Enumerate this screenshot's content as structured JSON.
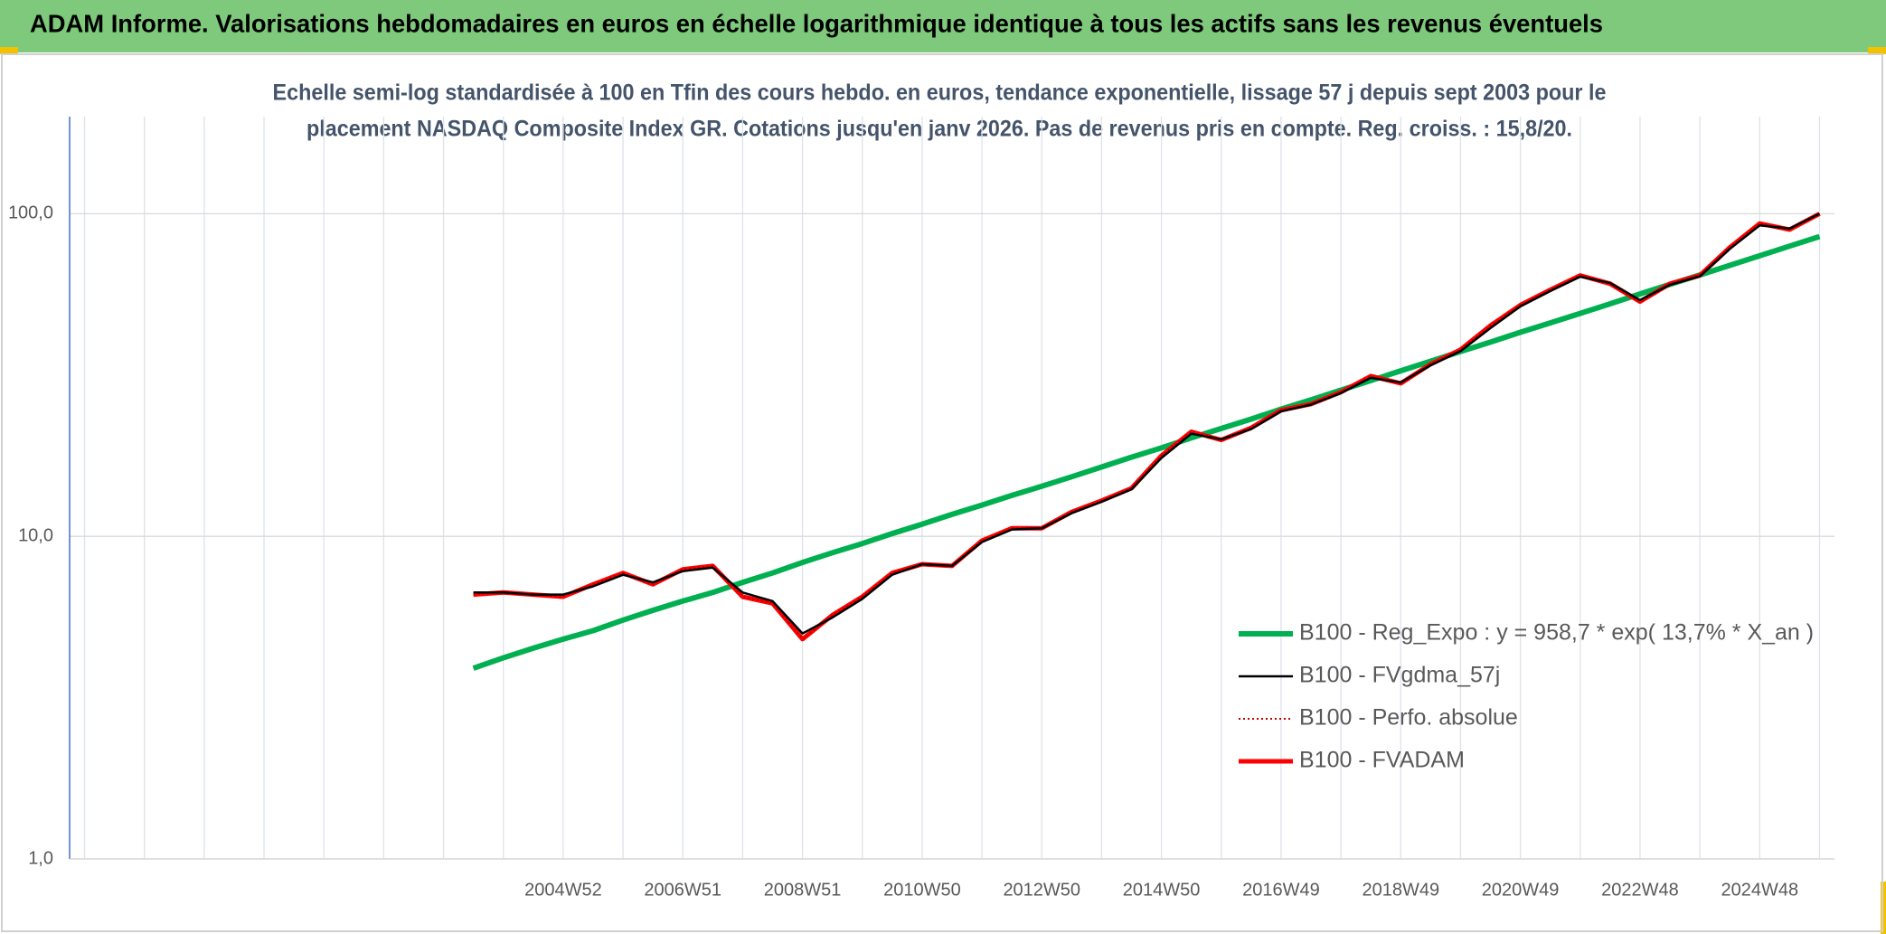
{
  "chart_data": {
    "type": "line",
    "title": "ADAM Informe. Valorisations hebdomadaires en euros en échelle logarithmique identique à tous les actifs sans les revenus éventuels",
    "subtitle": [
      "Echelle semi-log standardisée à 100 en Tfin des cours hebdo. en euros, tendance exponentielle, lissage 57 j depuis sept 2003 pour le",
      "placement NASDAQ Composite Index GR. Cotations jusqu'en janv 2026. Pas de revenus pris en compte. Reg. croiss. : 15,8/20."
    ],
    "categories": [
      null,
      null,
      null,
      null,
      null,
      null,
      null,
      null,
      null,
      null,
      null,
      null,
      null,
      null,
      null,
      null,
      "2004W52",
      null,
      null,
      null,
      "2006W51",
      null,
      null,
      null,
      "2008W51",
      null,
      null,
      null,
      "2010W50",
      null,
      null,
      null,
      "2012W50",
      null,
      null,
      null,
      "2014W50",
      null,
      null,
      null,
      "2016W49",
      null,
      null,
      null,
      "2018W49",
      null,
      null,
      null,
      "2020W49",
      null,
      null,
      null,
      "2022W48",
      null,
      null,
      null,
      "2024W48",
      null,
      null
    ],
    "log_scale": true,
    "grid": true,
    "ylim": [
      1,
      200
    ],
    "yticks": [
      {
        "value": 1,
        "label": "1,0"
      },
      {
        "value": 10,
        "label": "10,0"
      },
      {
        "value": 100,
        "label": "100,0"
      }
    ],
    "legend_position": "lower right",
    "series": [
      {
        "name": "B100 - Reg_Expo : y = 958,7 * exp( 13,7% *  X_an )",
        "color": "#00b050",
        "style": "solid",
        "values": [
          null,
          null,
          null,
          null,
          null,
          null,
          null,
          null,
          null,
          null,
          null,
          null,
          null,
          3.9,
          4.2,
          4.5,
          4.8,
          5.1,
          5.5,
          5.9,
          6.3,
          6.7,
          7.2,
          7.7,
          8.3,
          8.9,
          9.5,
          10.2,
          10.9,
          11.7,
          12.5,
          13.4,
          14.3,
          15.3,
          16.4,
          17.6,
          18.8,
          20.2,
          21.6,
          23.1,
          24.8,
          26.5,
          28.4,
          30.4,
          32.6,
          34.9,
          37.4,
          40.0,
          42.9,
          45.9,
          49.1,
          52.6,
          56.4,
          60.4,
          64.6,
          69.2,
          74.1,
          79.4,
          85.0
        ]
      },
      {
        "name": "B100 - FVgdma_57j",
        "color": "#000000",
        "style": "thin",
        "values": [
          null,
          null,
          null,
          null,
          null,
          null,
          null,
          null,
          null,
          null,
          null,
          null,
          null,
          6.7,
          6.7,
          6.6,
          6.6,
          7.0,
          7.6,
          7.2,
          7.8,
          8.0,
          6.7,
          6.3,
          5.0,
          5.6,
          6.4,
          7.6,
          8.2,
          8.1,
          9.6,
          10.5,
          10.6,
          11.8,
          12.8,
          14.0,
          17.5,
          20.8,
          20.0,
          21.5,
          24.4,
          25.6,
          27.8,
          31.0,
          30.0,
          33.9,
          37.5,
          44.2,
          51.6,
          57.6,
          63.8,
          61.0,
          54.0,
          60.2,
          64.0,
          77.8,
          92.0,
          90.0,
          100.0
        ]
      },
      {
        "name": "B100 - Perfo. absolue",
        "color": "#c00000",
        "style": "dotted",
        "values": [
          null,
          null,
          null,
          null,
          null,
          null,
          null,
          null,
          null,
          null,
          null,
          null,
          null,
          6.6,
          6.7,
          6.6,
          6.5,
          7.1,
          7.7,
          7.1,
          7.9,
          8.1,
          6.5,
          6.2,
          4.8,
          5.7,
          6.5,
          7.7,
          8.2,
          8.1,
          9.7,
          10.6,
          10.6,
          11.9,
          12.9,
          14.1,
          17.8,
          21.1,
          19.9,
          21.7,
          24.6,
          25.7,
          28.0,
          31.4,
          29.8,
          34.2,
          37.9,
          45.0,
          52.1,
          58.1,
          64.4,
          60.7,
          53.4,
          60.7,
          64.4,
          78.6,
          93.3,
          89.3,
          100.0
        ]
      },
      {
        "name": "B100 - FVADAM",
        "color": "#ff0000",
        "style": "thick",
        "values": [
          null,
          null,
          null,
          null,
          null,
          null,
          null,
          null,
          null,
          null,
          null,
          null,
          null,
          6.6,
          6.7,
          6.6,
          6.5,
          7.1,
          7.7,
          7.1,
          7.9,
          8.1,
          6.5,
          6.2,
          4.8,
          5.7,
          6.5,
          7.7,
          8.2,
          8.1,
          9.7,
          10.6,
          10.6,
          11.9,
          12.9,
          14.1,
          17.8,
          21.1,
          19.9,
          21.7,
          24.6,
          25.7,
          28.0,
          31.4,
          29.8,
          34.2,
          37.9,
          45.0,
          52.1,
          58.1,
          64.4,
          60.7,
          53.4,
          60.7,
          64.4,
          78.6,
          93.3,
          89.3,
          100.0
        ]
      }
    ]
  }
}
